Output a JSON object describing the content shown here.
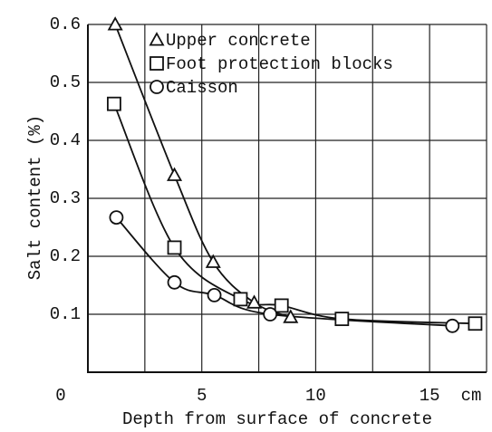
{
  "chart_data": {
    "type": "scatter",
    "x_label": "Depth from surface of concrete",
    "x_unit": "cm",
    "y_label": "Salt content (%)",
    "xlim": [
      0,
      17.5
    ],
    "xticks": [
      0,
      5,
      10,
      15
    ],
    "xgrid": [
      2.5,
      5,
      7.5,
      10,
      12.5,
      15,
      17.5
    ],
    "ylim": [
      0,
      0.6
    ],
    "yticks": [
      0.1,
      0.2,
      0.3,
      0.4,
      0.5,
      0.6
    ],
    "grid": true,
    "series": [
      {
        "name": "Upper concrete",
        "marker": "triangle",
        "color": "#111111",
        "x": [
          1.2,
          3.8,
          5.5,
          7.3,
          8.9
        ],
        "values": [
          0.6,
          0.34,
          0.19,
          0.12,
          0.095
        ]
      },
      {
        "name": "Foot protection blocks",
        "marker": "square",
        "color": "#111111",
        "x": [
          1.15,
          3.8,
          6.7,
          8.5,
          11.15,
          17.0
        ],
        "values": [
          0.463,
          0.215,
          0.126,
          0.115,
          0.092,
          0.084
        ]
      },
      {
        "name": "Caisson",
        "marker": "circle",
        "color": "#111111",
        "x": [
          1.25,
          3.8,
          5.55,
          8.0,
          16.0
        ],
        "values": [
          0.267,
          0.155,
          0.133,
          0.1,
          0.08
        ]
      }
    ]
  }
}
